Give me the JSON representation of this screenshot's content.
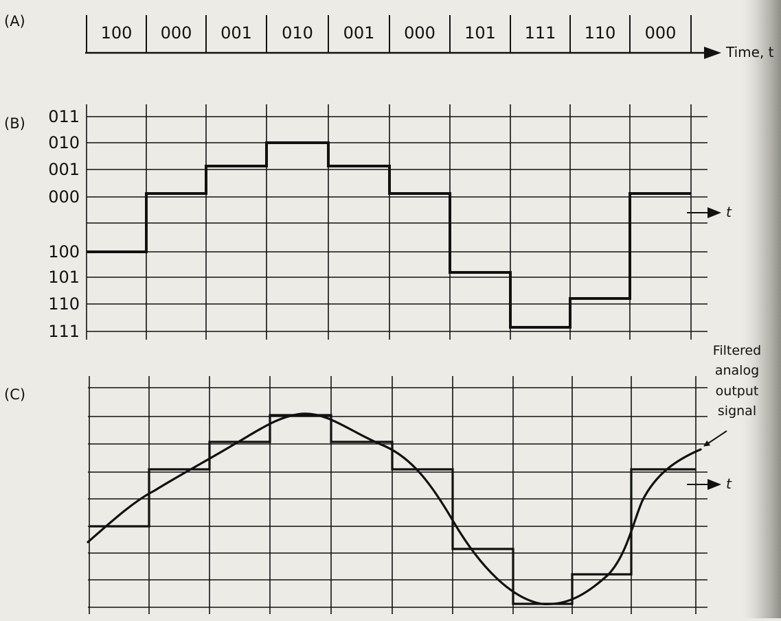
{
  "panels": {
    "a": {
      "label": "(A)"
    },
    "b": {
      "label": "(B)"
    },
    "c": {
      "label": "(C)"
    }
  },
  "codes": [
    "100",
    "000",
    "001",
    "010",
    "001",
    "000",
    "101",
    "111",
    "110",
    "000"
  ],
  "time_label": "Time, t",
  "t_label": "t",
  "levels": [
    "011",
    "010",
    "001",
    "000",
    "100",
    "101",
    "110",
    "111"
  ],
  "annotation": [
    "Filtered",
    "analog",
    "output",
    "signal"
  ],
  "colors": {
    "background": "#ecebe6",
    "ink": "#111111",
    "shadow": "#9a9a92"
  }
}
